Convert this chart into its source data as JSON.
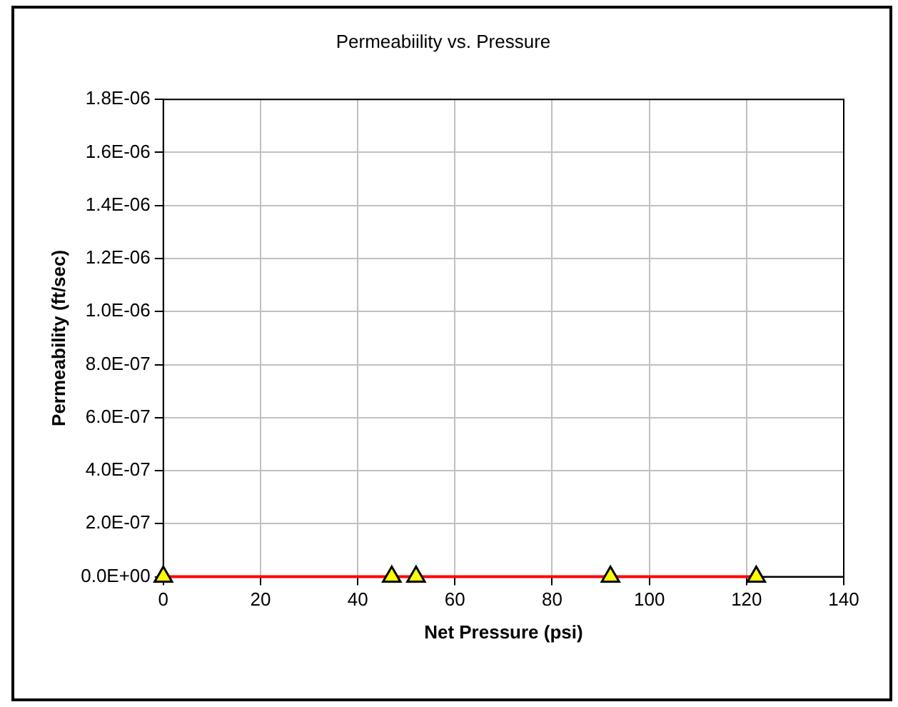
{
  "chart_data": {
    "type": "scatter",
    "title": "Permeabiility vs. Pressure",
    "xlabel": "Net Pressure (psi)",
    "ylabel": "Permeability (ft/sec)",
    "series": [
      {
        "type": "line",
        "color": "#ff0000",
        "x": [
          0,
          122
        ],
        "values": [
          0,
          0
        ],
        "marker": "none"
      },
      {
        "type": "scatter",
        "color": "#ffff00",
        "x": [
          0,
          47,
          52,
          92,
          122
        ],
        "values": [
          0,
          0,
          0,
          0,
          0
        ],
        "marker": "triangle"
      }
    ],
    "xlim": [
      0,
      140
    ],
    "xticks": [
      0,
      20,
      40,
      60,
      80,
      100,
      120,
      140
    ],
    "ylim": [
      0,
      1.8e-06
    ],
    "yticks": [
      {
        "value": 0,
        "label": "0.0E+00"
      },
      {
        "value": 2e-07,
        "label": "2.0E-07"
      },
      {
        "value": 4e-07,
        "label": "4.0E-07"
      },
      {
        "value": 6e-07,
        "label": "6.0E-07"
      },
      {
        "value": 8e-07,
        "label": "8.0E-07"
      },
      {
        "value": 1e-06,
        "label": "1.0E-06"
      },
      {
        "value": 1.2e-06,
        "label": "1.2E-06"
      },
      {
        "value": 1.4e-06,
        "label": "1.4E-06"
      },
      {
        "value": 1.6e-06,
        "label": "1.6E-06"
      },
      {
        "value": 1.8e-06,
        "label": "1.8E-06"
      }
    ],
    "grid": true
  }
}
